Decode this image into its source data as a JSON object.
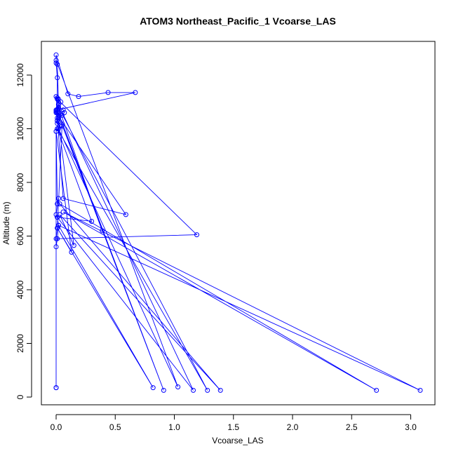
{
  "chart_data": {
    "type": "line",
    "title": "ATOM3 Northeast_Pacific_1 Vcoarse_LAS",
    "xlabel": "Vcoarse_LAS",
    "ylabel": "Altitude (m)",
    "xlim": [
      0,
      3.1
    ],
    "ylim": [
      0,
      12800
    ],
    "xticks": [
      "0.0",
      "0.5",
      "1.0",
      "1.5",
      "2.0",
      "2.5",
      "3.0"
    ],
    "yticks": [
      "0",
      "2000",
      "4000",
      "6000",
      "8000",
      "10000",
      "12000"
    ],
    "grid": false,
    "legend": "none",
    "series": [
      {
        "color": "#0000ff",
        "marker": "open-circle",
        "x": [
          0.0,
          0.0,
          0.01,
          0.02,
          0.01,
          0.0,
          0.02,
          0.01,
          0.0,
          0.01,
          0.03,
          0.01,
          0.02,
          0.0,
          0.04,
          0.02,
          0.01,
          0.0,
          0.01,
          0.01,
          0.02,
          0.06,
          0.07,
          0.05,
          0.02,
          0.01,
          0.02,
          0.01,
          0.01,
          0.0,
          0.0,
          0.1,
          0.19,
          0.44,
          0.67,
          0.01,
          0.0,
          0.01,
          0.02,
          0.01,
          0.06,
          0.59,
          0.0,
          0.01,
          0.02,
          0.01,
          1.19,
          0.0,
          0.01,
          0.05,
          0.02,
          1.03,
          0.0,
          0.01,
          0.02,
          1.16,
          0.01,
          0.3,
          0.01,
          1.28,
          0.02,
          0.39,
          0.01,
          0.91,
          0.01,
          0.15,
          0.03,
          1.39,
          0.03,
          2.71,
          0.06,
          3.08,
          0.02,
          0.82,
          0.01,
          0.13,
          0.0,
          0.0
        ],
        "y": [
          350,
          5600,
          5900,
          6400,
          6700,
          6800,
          7400,
          7200,
          9900,
          10000,
          10100,
          10300,
          10600,
          10700,
          11000,
          11100,
          11150,
          11200,
          10600,
          10700,
          10800,
          10700,
          10600,
          10500,
          10400,
          10300,
          10250,
          10200,
          11900,
          12450,
          12750,
          11300,
          11200,
          11350,
          11350,
          10700,
          10650,
          10600,
          10500,
          10400,
          7400,
          6800,
          10600,
          10700,
          10900,
          11100,
          6050,
          5900,
          6300,
          10100,
          10000,
          380,
          12550,
          12400,
          10900,
          250,
          6700,
          6550,
          10000,
          250,
          10800,
          6200,
          10700,
          250,
          10600,
          5650,
          6800,
          250,
          7200,
          250,
          6900,
          250,
          6400,
          350,
          6300,
          5400,
          9900,
          350
        ]
      }
    ]
  }
}
